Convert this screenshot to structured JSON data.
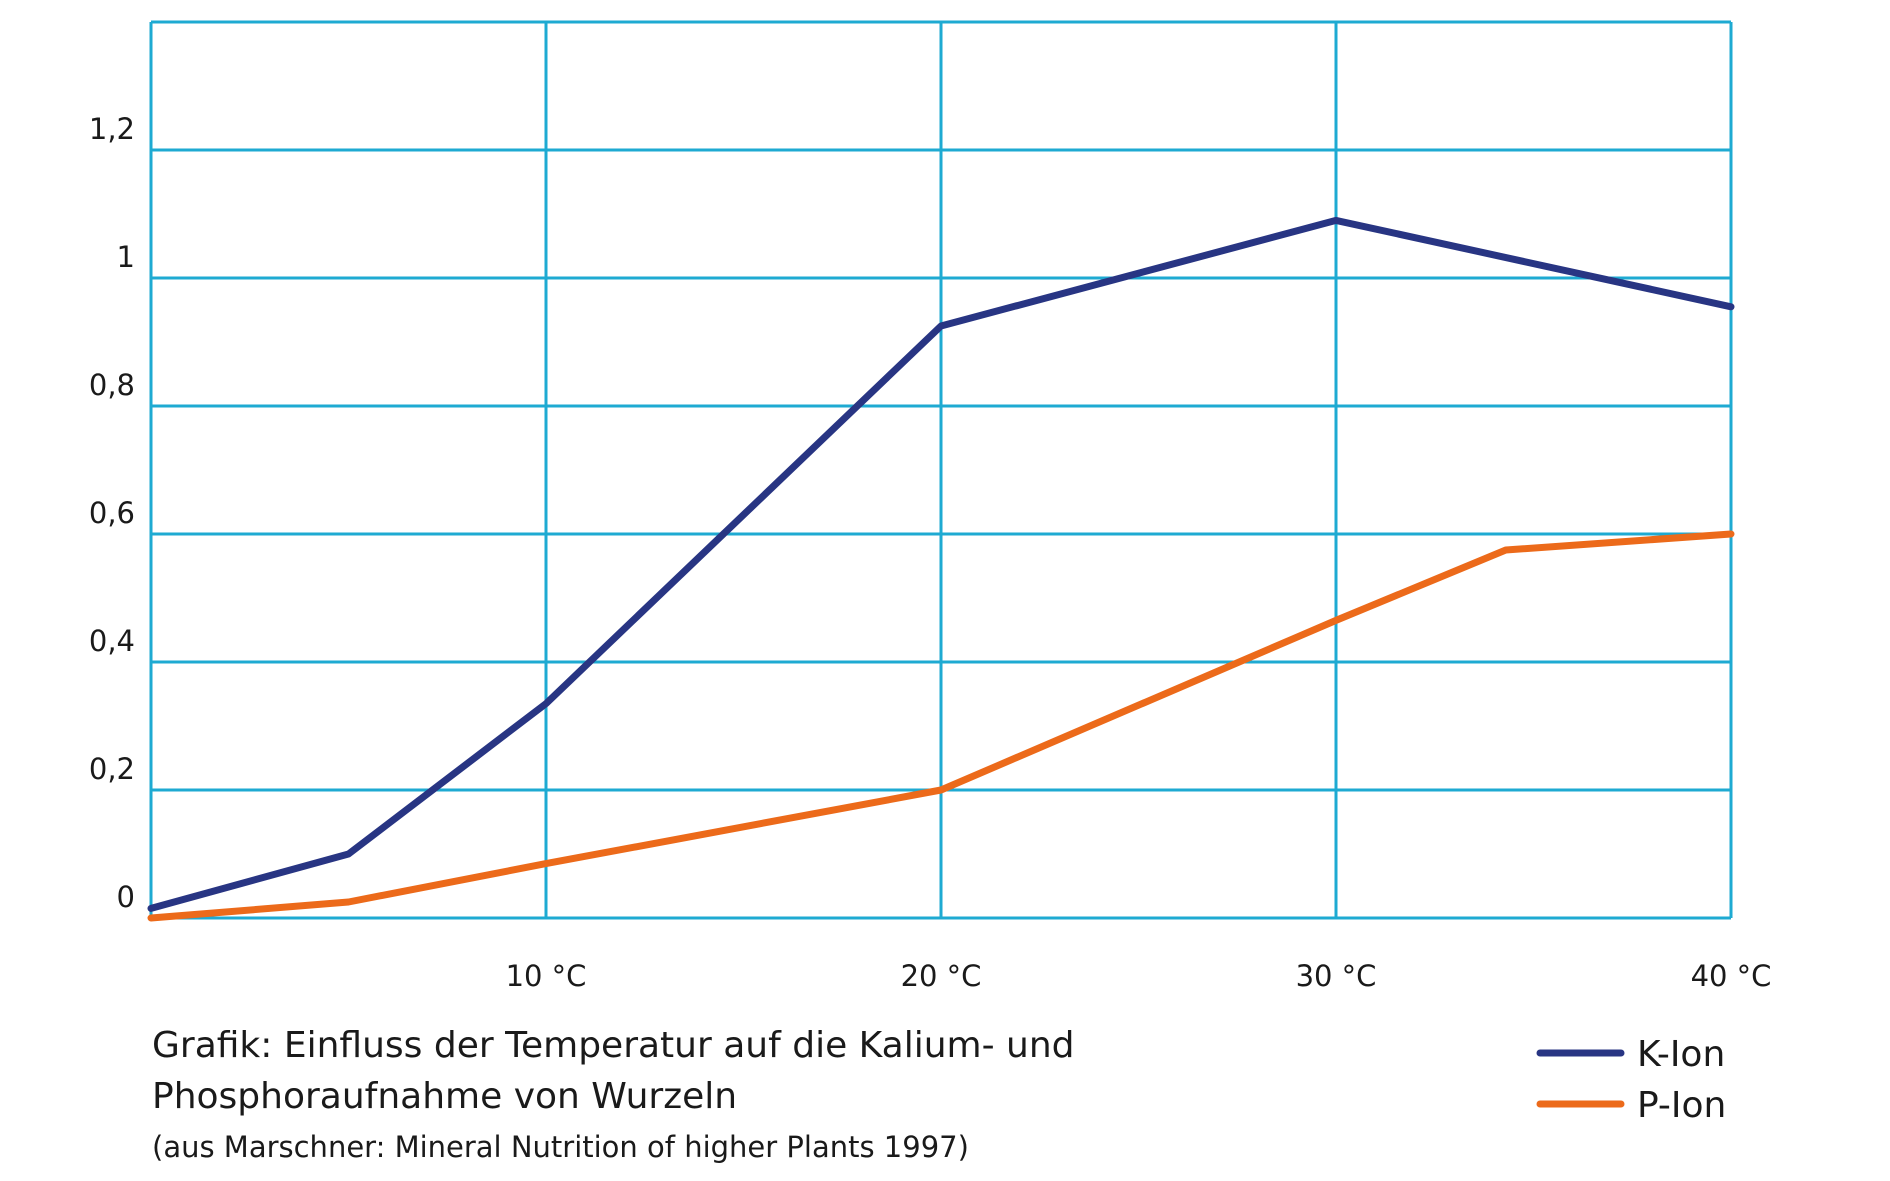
{
  "chart_data": {
    "type": "line",
    "y_ticks": [
      {
        "value": 0,
        "label": "0"
      },
      {
        "value": 0.2,
        "label": "0,2"
      },
      {
        "value": 0.4,
        "label": "0,4"
      },
      {
        "value": 0.6,
        "label": "0,6"
      },
      {
        "value": 0.8,
        "label": "0,8"
      },
      {
        "value": 1.0,
        "label": "1"
      },
      {
        "value": 1.2,
        "label": "1,2"
      }
    ],
    "x_ticks": [
      {
        "value": 10,
        "label": "10 °C"
      },
      {
        "value": 20,
        "label": "20 °C"
      },
      {
        "value": 30,
        "label": "30 °C"
      },
      {
        "value": 40,
        "label": "40 °C"
      }
    ],
    "xlim": [
      0,
      40
    ],
    "ylim": [
      0,
      1.4
    ],
    "grid": true,
    "series": [
      {
        "name": "K-Ion",
        "color": "#283583",
        "points": [
          [
            0,
            0.015
          ],
          [
            5,
            0.1
          ],
          [
            10,
            0.335
          ],
          [
            20,
            0.925
          ],
          [
            30,
            1.09
          ],
          [
            40,
            0.955
          ]
        ]
      },
      {
        "name": "P-Ion",
        "color": "#ec6a1a",
        "points": [
          [
            0,
            0.0
          ],
          [
            5,
            0.025
          ],
          [
            10,
            0.085
          ],
          [
            20,
            0.2
          ],
          [
            30,
            0.465
          ],
          [
            34.3,
            0.575
          ],
          [
            40,
            0.6
          ]
        ]
      }
    ],
    "legend_position": "bottom-right",
    "grid_color": "#1eaad2"
  },
  "caption": {
    "line1": "Grafik: Einfluss der Temperatur auf die Kalium- und",
    "line2": "Phosphoraufnahme von Wurzeln",
    "source": "(aus Marschner: Mineral Nutrition of higher Plants 1997)"
  }
}
